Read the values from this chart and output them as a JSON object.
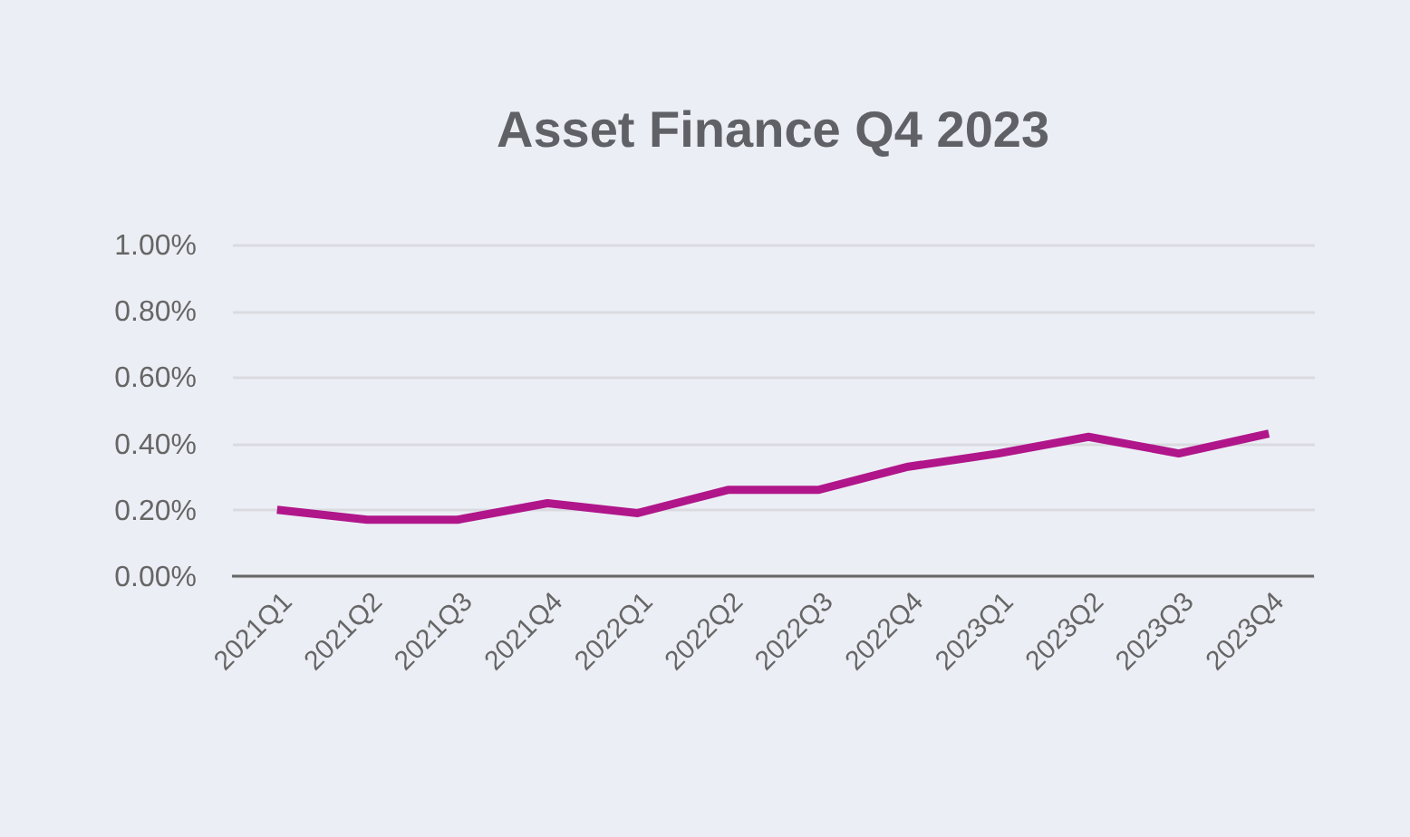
{
  "chart_data": {
    "type": "line",
    "title": "Asset Finance Q4 2023",
    "categories": [
      "2021Q1",
      "2021Q2",
      "2021Q3",
      "2021Q4",
      "2022Q1",
      "2022Q2",
      "2022Q3",
      "2022Q4",
      "2023Q1",
      "2023Q2",
      "2023Q3",
      "2023Q4"
    ],
    "series": [
      {
        "color": "#b0168a",
        "values": [
          0.2,
          0.17,
          0.17,
          0.22,
          0.19,
          0.26,
          0.26,
          0.33,
          0.37,
          0.42,
          0.37,
          0.43
        ]
      }
    ],
    "ylim": [
      0,
      1
    ],
    "yticks": [
      {
        "value": 0,
        "label": "0.00%"
      },
      {
        "value": 0.2,
        "label": "0.20%"
      },
      {
        "value": 0.4,
        "label": "0.40%"
      },
      {
        "value": 0.6,
        "label": "0.60%"
      },
      {
        "value": 0.8,
        "label": "0.80%"
      },
      {
        "value": 1,
        "label": "1.00%"
      }
    ],
    "grid": "y",
    "marker": "none",
    "line_style": "solid"
  }
}
